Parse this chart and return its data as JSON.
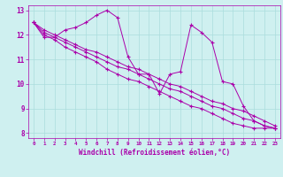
{
  "xlabel": "Windchill (Refroidissement éolien,°C)",
  "bg_color": "#cff0f0",
  "line_color": "#aa00aa",
  "grid_color": "#aadddd",
  "ylim": [
    7.8,
    13.2
  ],
  "xlim": [
    -0.5,
    23.5
  ],
  "yticks": [
    8,
    9,
    10,
    11,
    12,
    13
  ],
  "xticks": [
    0,
    1,
    2,
    3,
    4,
    5,
    6,
    7,
    8,
    9,
    10,
    11,
    12,
    13,
    14,
    15,
    16,
    17,
    18,
    19,
    20,
    21,
    22,
    23
  ],
  "series": [
    {
      "x": [
        0,
        1,
        2,
        3,
        4,
        5,
        6,
        7,
        8,
        9,
        10,
        11,
        12,
        13,
        14,
        15,
        16,
        17,
        18,
        19,
        20,
        21,
        22,
        23
      ],
      "y": [
        12.5,
        11.9,
        11.9,
        12.2,
        12.3,
        12.5,
        12.8,
        13.0,
        12.7,
        11.1,
        10.4,
        10.4,
        9.6,
        10.4,
        10.5,
        12.4,
        12.1,
        11.7,
        10.1,
        10.0,
        9.1,
        8.5,
        8.3,
        8.2
      ]
    },
    {
      "x": [
        0,
        1,
        2,
        3,
        4,
        5,
        6,
        7,
        8,
        9,
        10,
        11,
        12,
        13,
        14,
        15,
        16,
        17,
        18,
        19,
        20,
        21,
        22,
        23
      ],
      "y": [
        12.5,
        12.2,
        12.0,
        11.8,
        11.6,
        11.4,
        11.3,
        11.1,
        10.9,
        10.7,
        10.6,
        10.4,
        10.2,
        10.0,
        9.9,
        9.7,
        9.5,
        9.3,
        9.2,
        9.0,
        8.9,
        8.7,
        8.5,
        8.3
      ]
    },
    {
      "x": [
        0,
        1,
        2,
        3,
        4,
        5,
        6,
        7,
        8,
        9,
        10,
        11,
        12,
        13,
        14,
        15,
        16,
        17,
        18,
        19,
        20,
        21,
        22,
        23
      ],
      "y": [
        12.5,
        12.1,
        11.9,
        11.7,
        11.5,
        11.3,
        11.1,
        10.9,
        10.7,
        10.6,
        10.4,
        10.2,
        10.0,
        9.8,
        9.7,
        9.5,
        9.3,
        9.1,
        9.0,
        8.8,
        8.6,
        8.5,
        8.3,
        8.2
      ]
    },
    {
      "x": [
        0,
        1,
        2,
        3,
        4,
        5,
        6,
        7,
        8,
        9,
        10,
        11,
        12,
        13,
        14,
        15,
        16,
        17,
        18,
        19,
        20,
        21,
        22,
        23
      ],
      "y": [
        12.5,
        12.0,
        11.8,
        11.5,
        11.3,
        11.1,
        10.9,
        10.6,
        10.4,
        10.2,
        10.1,
        9.9,
        9.7,
        9.5,
        9.3,
        9.1,
        9.0,
        8.8,
        8.6,
        8.4,
        8.3,
        8.2,
        8.2,
        8.2
      ]
    }
  ]
}
